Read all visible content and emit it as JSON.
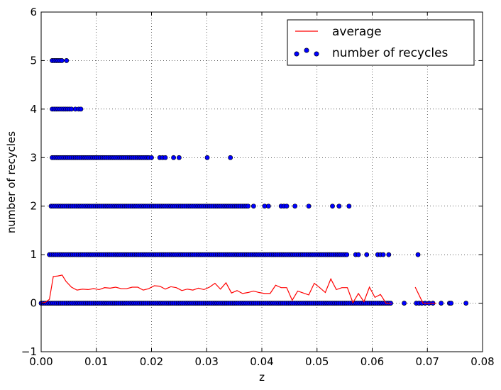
{
  "chart_data": {
    "type": "scatter",
    "xlabel": "z",
    "ylabel": "number of recycles",
    "xlim": [
      0.0,
      0.08
    ],
    "ylim": [
      -1,
      6
    ],
    "xticks": [
      0.0,
      0.01,
      0.02,
      0.03,
      0.04,
      0.05,
      0.06,
      0.07,
      0.08
    ],
    "xtick_labels": [
      "0.00",
      "0.01",
      "0.02",
      "0.03",
      "0.04",
      "0.05",
      "0.06",
      "0.07",
      "0.08"
    ],
    "yticks": [
      -1,
      0,
      1,
      2,
      3,
      4,
      5,
      6
    ],
    "ytick_labels": [
      "−1",
      "0",
      "1",
      "2",
      "3",
      "4",
      "5",
      "6"
    ],
    "grid": true,
    "legend_position": "top-right",
    "colors": {
      "line": "#ff0000",
      "points": "#0000ff",
      "point_edge": "#000000"
    },
    "series": [
      {
        "name": "average",
        "kind": "line",
        "x": [
          0.0,
          0.0008,
          0.0015,
          0.0022,
          0.003,
          0.0038,
          0.0045,
          0.0055,
          0.0065,
          0.0075,
          0.0085,
          0.0095,
          0.0105,
          0.0115,
          0.0125,
          0.0135,
          0.0145,
          0.0155,
          0.0165,
          0.0175,
          0.0185,
          0.0195,
          0.0205,
          0.0215,
          0.0225,
          0.0235,
          0.0245,
          0.0255,
          0.0265,
          0.0275,
          0.0285,
          0.0295,
          0.0305,
          0.0315,
          0.0325,
          0.0335,
          0.0345,
          0.0355,
          0.0365,
          0.0375,
          0.0385,
          0.0395,
          0.0405,
          0.0415,
          0.0425,
          0.0435,
          0.0445,
          0.0455,
          0.0465,
          0.0475,
          0.0485,
          0.0495,
          0.0505,
          0.0515,
          0.0525,
          0.0535,
          0.0545,
          0.0555,
          0.0565,
          0.0575,
          0.0585,
          0.0595,
          0.0605,
          0.0615,
          0.0625,
          0.0635
        ],
        "y": [
          0.0,
          0.02,
          0.08,
          0.55,
          0.56,
          0.58,
          0.45,
          0.33,
          0.27,
          0.29,
          0.28,
          0.3,
          0.28,
          0.32,
          0.31,
          0.33,
          0.3,
          0.3,
          0.33,
          0.33,
          0.27,
          0.3,
          0.36,
          0.35,
          0.29,
          0.34,
          0.32,
          0.26,
          0.29,
          0.27,
          0.31,
          0.28,
          0.33,
          0.41,
          0.29,
          0.42,
          0.21,
          0.26,
          0.2,
          0.22,
          0.25,
          0.22,
          0.2,
          0.2,
          0.37,
          0.32,
          0.32,
          0.06,
          0.25,
          0.21,
          0.17,
          0.41,
          0.32,
          0.22,
          0.5,
          0.28,
          0.32,
          0.32,
          0.01,
          0.2,
          0.03,
          0.33,
          0.12,
          0.18,
          0.0,
          0.0
        ],
        "x2": [
          0.0678,
          0.0692,
          0.07,
          0.0708,
          0.0716
        ],
        "y2": [
          0.33,
          0.0,
          0.0,
          0.0,
          0.0
        ]
      },
      {
        "name": "number of recycles",
        "kind": "scatter",
        "levels": [
          {
            "y": 0,
            "x_dense": [
              0.0,
              0.0635
            ],
            "x_sparse": [
              0.0658,
              0.068,
              0.0685,
              0.069,
              0.0696,
              0.0703,
              0.071,
              0.0725,
              0.074,
              0.0743,
              0.077
            ]
          },
          {
            "y": 1,
            "x_dense": [
              0.0015,
              0.0555
            ],
            "x_sparse": [
              0.057,
              0.0575,
              0.059,
              0.061,
              0.0615,
              0.062,
              0.063,
              0.0683
            ]
          },
          {
            "y": 2,
            "x_dense": [
              0.0018,
              0.0375
            ],
            "x_sparse": [
              0.0385,
              0.0405,
              0.0412,
              0.0435,
              0.044,
              0.0445,
              0.046,
              0.0485,
              0.0528,
              0.054,
              0.0558
            ]
          },
          {
            "y": 3,
            "x_dense": [
              0.002,
              0.0195
            ],
            "x_sparse": [
              0.02,
              0.0215,
              0.022,
              0.0225,
              0.024,
              0.025,
              0.0301,
              0.0343
            ]
          },
          {
            "y": 4,
            "x_dense": [
              0.002,
              0.0055
            ],
            "x_sparse": [
              0.0062,
              0.0068,
              0.0072
            ]
          },
          {
            "y": 5,
            "x_dense": [
              0.002,
              0.0038
            ],
            "x_sparse": [
              0.0046
            ]
          }
        ]
      }
    ]
  },
  "legend": {
    "items": [
      {
        "label": "average",
        "symbol": "line"
      },
      {
        "label": "number of recycles",
        "symbol": "markers"
      }
    ]
  }
}
